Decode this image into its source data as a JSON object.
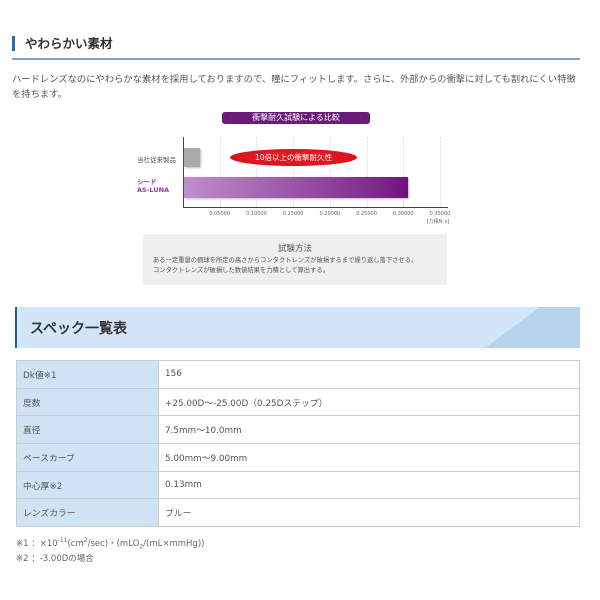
{
  "section1": {
    "title": "やわらかい素材",
    "body": "ハードレンズなのにやわらかな素材を採用しておりますので、瞳にフィットします。さらに、外部からの衝撃に対しても割れにくい特徴を持ちます。"
  },
  "chart_data": {
    "type": "bar",
    "orientation": "horizontal",
    "title": "衝撃耐久試験による比較",
    "categories": [
      "当社従来製品",
      "シード AS-LUNA"
    ],
    "values": [
      0.022,
      0.305
    ],
    "colors": [
      "#aaaaaa",
      "#7a2488"
    ],
    "xlim": [
      0,
      0.35
    ],
    "xticks": [
      "0.05000",
      "0.10000",
      "0.15000",
      "0.20000",
      "0.25000",
      "0.30000",
      "0.35000"
    ],
    "xunit": "[力積N･s]",
    "annotation": "10倍以上の衝撃耐久性",
    "grid": true
  },
  "chart_labels": {
    "cat0": "当社従来製品",
    "cat1a": "シード",
    "cat1b": "AS-LUNA"
  },
  "method": {
    "title": "試験方法",
    "line1": "ある一定重量の鋼球を所定の高さからコンタクトレンズが破損するまで繰り返し落下させる。",
    "line2": "コンタクトレンズが破損した数値結果を力積として算出する。"
  },
  "spec": {
    "title": "スペック一覧表",
    "rows": [
      {
        "key": "Dk値※1",
        "value": "156"
      },
      {
        "key": "度数",
        "value": "+25.00D～-25.00D（0.25Dステップ）"
      },
      {
        "key": "直径",
        "value": "7.5mm～10.0mm"
      },
      {
        "key": "ベースカーブ",
        "value": "5.00mm～9.00mm"
      },
      {
        "key": "中心厚※2",
        "value": "0.13mm"
      },
      {
        "key": "レンズカラー",
        "value": "ブルー"
      }
    ]
  },
  "footnotes": {
    "n1": {
      "a": "※1 ：×10",
      "sup1": "-11",
      "b": "(cm",
      "sup2": "2",
      "c": "/sec)・(mLO",
      "sub": "2",
      "d": "/(mL×mmHg))"
    },
    "n2": "※2 ：-3.00Dの場合"
  }
}
